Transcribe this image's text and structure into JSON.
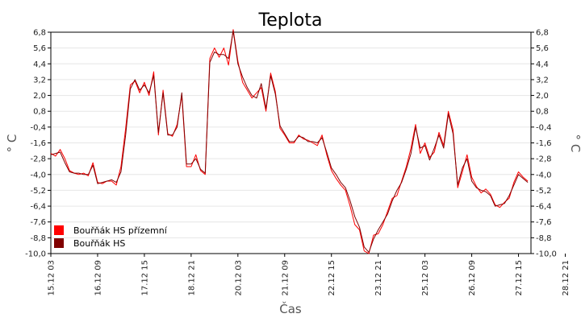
{
  "chart_data": {
    "type": "line",
    "title": "Teplota",
    "xlabel": "Čas",
    "ylabel": "° C",
    "y_ticks": [
      "6,8",
      "5,6",
      "4,4",
      "3,2",
      "2,0",
      "0,8",
      "-0,4",
      "-1,6",
      "-2,8",
      "-4,0",
      "-5,2",
      "-6,4",
      "-7,6",
      "-8,8",
      "-10,0"
    ],
    "ylim": [
      -10.0,
      6.8
    ],
    "x_ticks": [
      "15.12 03",
      "16.12 09",
      "17.12 15",
      "18.12 21",
      "20.12 03",
      "21.12 09",
      "22.12 15",
      "23.12 21",
      "25.12 03",
      "26.12 09",
      "27.12 15",
      "28.12 21"
    ],
    "xlim_hours": [
      0,
      308
    ],
    "grid": "horizontal",
    "legend_placement": "bottom-left",
    "series": [
      {
        "name": "Bouřňák HS přízemní",
        "color": "#ff0000",
        "x": [
          0,
          3,
          6,
          9,
          12,
          15,
          18,
          21,
          24,
          27,
          30,
          33,
          36,
          39,
          42,
          45,
          48,
          51,
          54,
          57,
          60,
          63,
          66,
          69,
          72,
          75,
          78,
          81,
          84,
          87,
          90,
          93,
          96,
          99,
          102,
          105,
          108,
          111,
          114,
          117,
          120,
          123,
          126,
          129,
          132,
          135,
          138,
          141,
          144,
          147,
          150,
          153,
          156,
          159,
          162,
          165,
          168,
          171,
          174,
          177,
          180,
          183,
          186,
          189,
          192,
          195,
          198,
          201,
          204,
          207,
          210,
          213,
          216,
          219,
          222,
          225,
          228,
          231,
          234,
          237,
          240,
          243,
          246,
          249,
          252,
          255,
          258,
          261,
          264,
          267,
          270,
          273,
          276,
          279,
          282,
          285,
          288,
          291,
          294,
          297,
          300,
          303,
          306
        ],
        "y": [
          -2.4,
          -2.6,
          -2.1,
          -2.8,
          -3.7,
          -3.9,
          -4.0,
          -3.9,
          -4.1,
          -3.1,
          -4.6,
          -4.7,
          -4.5,
          -4.5,
          -4.8,
          -3.4,
          -0.5,
          2.8,
          3.1,
          2.2,
          3.0,
          2.0,
          3.8,
          -1.0,
          2.4,
          -0.9,
          -1.1,
          -0.2,
          2.0,
          -3.4,
          -3.4,
          -2.5,
          -3.7,
          -4.0,
          4.8,
          5.6,
          4.9,
          5.6,
          4.3,
          7.0,
          4.6,
          3.0,
          2.4,
          1.8,
          2.2,
          2.6,
          0.8,
          3.7,
          2.3,
          -0.5,
          -1.0,
          -1.6,
          -1.6,
          -1.0,
          -1.3,
          -1.4,
          -1.6,
          -1.8,
          -1.0,
          -2.5,
          -3.7,
          -4.3,
          -4.8,
          -5.2,
          -6.4,
          -7.8,
          -8.2,
          -9.8,
          -10.0,
          -8.6,
          -8.5,
          -7.8,
          -6.8,
          -5.8,
          -5.6,
          -4.5,
          -3.4,
          -2.0,
          -0.2,
          -2.4,
          -1.6,
          -2.7,
          -2.3,
          -0.8,
          -1.8,
          0.8,
          -0.6,
          -5.0,
          -3.8,
          -2.5,
          -4.2,
          -4.9,
          -5.4,
          -5.1,
          -5.5,
          -6.3,
          -6.5,
          -6.1,
          -5.8,
          -4.6,
          -3.8,
          -4.2,
          -4.5
        ]
      },
      {
        "name": "Bouřňák HS",
        "color": "#800000",
        "x": [
          0,
          3,
          6,
          9,
          12,
          15,
          18,
          21,
          24,
          27,
          30,
          33,
          36,
          39,
          42,
          45,
          48,
          51,
          54,
          57,
          60,
          63,
          66,
          69,
          72,
          75,
          78,
          81,
          84,
          87,
          90,
          93,
          96,
          99,
          102,
          105,
          108,
          111,
          114,
          117,
          120,
          123,
          126,
          129,
          132,
          135,
          138,
          141,
          144,
          147,
          150,
          153,
          156,
          159,
          162,
          165,
          168,
          171,
          174,
          177,
          180,
          183,
          186,
          189,
          192,
          195,
          198,
          201,
          204,
          207,
          210,
          213,
          216,
          219,
          222,
          225,
          228,
          231,
          234,
          237,
          240,
          243,
          246,
          249,
          252,
          255,
          258,
          261,
          264,
          267,
          270,
          273,
          276,
          279,
          282,
          285,
          288,
          291,
          294,
          297,
          300,
          303,
          306
        ],
        "y": [
          -2.5,
          -2.4,
          -2.3,
          -3.1,
          -3.8,
          -3.9,
          -3.9,
          -4.0,
          -4.0,
          -3.3,
          -4.7,
          -4.6,
          -4.5,
          -4.4,
          -4.6,
          -3.8,
          -1.0,
          2.5,
          3.2,
          2.4,
          2.8,
          2.2,
          3.5,
          -0.8,
          2.2,
          -1.0,
          -1.0,
          -0.4,
          2.2,
          -3.2,
          -3.2,
          -2.8,
          -3.6,
          -3.9,
          4.5,
          5.3,
          5.1,
          5.1,
          4.8,
          6.9,
          4.4,
          3.4,
          2.6,
          2.0,
          1.8,
          2.9,
          1.0,
          3.5,
          2.1,
          -0.3,
          -0.9,
          -1.5,
          -1.5,
          -1.1,
          -1.2,
          -1.5,
          -1.5,
          -1.6,
          -1.2,
          -2.3,
          -3.5,
          -4.0,
          -4.6,
          -5.0,
          -6.0,
          -7.2,
          -8.0,
          -9.5,
          -9.9,
          -8.9,
          -8.2,
          -7.6,
          -7.0,
          -6.0,
          -5.2,
          -4.6,
          -3.6,
          -2.4,
          -0.4,
          -2.0,
          -1.8,
          -2.9,
          -2.0,
          -1.0,
          -2.0,
          0.6,
          -0.9,
          -4.8,
          -3.5,
          -2.8,
          -4.5,
          -5.0,
          -5.2,
          -5.3,
          -5.6,
          -6.4,
          -6.3,
          -6.2,
          -5.6,
          -4.8,
          -4.0,
          -4.3,
          -4.6
        ]
      }
    ]
  }
}
